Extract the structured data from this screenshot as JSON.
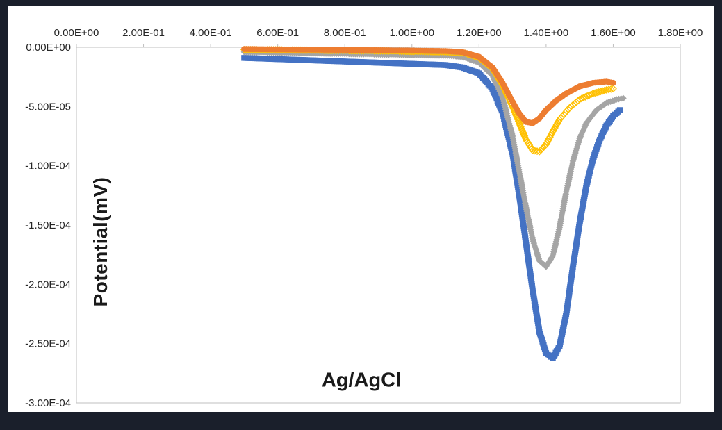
{
  "page": {
    "background_color": "#1a1f2b",
    "card_background_color": "#ffffff"
  },
  "chart_data": {
    "type": "scatter",
    "title": "",
    "xlabel": "Ag/AgCl",
    "ylabel": "Potential(mV)",
    "xlim": [
      0.0,
      1.8
    ],
    "ylim": [
      -0.0003,
      0.0
    ],
    "grid": false,
    "legend": "none",
    "axis_color": "#BFBFBF",
    "tick_text_color": "#262626",
    "x_ticks": [
      "0.00E+00",
      "2.00E-01",
      "4.00E-01",
      "6.00E-01",
      "8.00E-01",
      "1.00E+00",
      "1.20E+00",
      "1.40E+00",
      "1.60E+00",
      "1.80E+00"
    ],
    "x_tick_values": [
      0.0,
      0.2,
      0.4,
      0.6,
      0.8,
      1.0,
      1.2,
      1.4,
      1.6,
      1.8
    ],
    "y_ticks": [
      "0.00E+00",
      "-5.00E-05",
      "-1.00E-04",
      "-1.50E-04",
      "-2.00E-04",
      "-2.50E-04",
      "-3.00E-04"
    ],
    "y_tick_values": [
      0.0,
      -5e-05,
      -0.0001,
      -0.00015,
      -0.0002,
      -0.00025,
      -0.0003
    ],
    "series": [
      {
        "name": "blue-squares",
        "marker": "square",
        "color": "#4472C4",
        "points": [
          [
            0.5,
            -9e-06
          ],
          [
            0.55,
            -9.5e-06
          ],
          [
            0.6,
            -1e-05
          ],
          [
            0.7,
            -1.1e-05
          ],
          [
            0.8,
            -1.2e-05
          ],
          [
            0.9,
            -1.3e-05
          ],
          [
            1.0,
            -1.4e-05
          ],
          [
            1.1,
            -1.5e-05
          ],
          [
            1.15,
            -1.7e-05
          ],
          [
            1.2,
            -2.2e-05
          ],
          [
            1.24,
            -3.5e-05
          ],
          [
            1.27,
            -5.5e-05
          ],
          [
            1.3,
            -9e-05
          ],
          [
            1.32,
            -0.000125
          ],
          [
            1.34,
            -0.000165
          ],
          [
            1.36,
            -0.000205
          ],
          [
            1.38,
            -0.00024
          ],
          [
            1.4,
            -0.000258
          ],
          [
            1.42,
            -0.000262
          ],
          [
            1.44,
            -0.000252
          ],
          [
            1.46,
            -0.000225
          ],
          [
            1.48,
            -0.000185
          ],
          [
            1.5,
            -0.000148
          ],
          [
            1.52,
            -0.000117
          ],
          [
            1.54,
            -9.4e-05
          ],
          [
            1.56,
            -7.8e-05
          ],
          [
            1.58,
            -6.6e-05
          ],
          [
            1.6,
            -5.8e-05
          ],
          [
            1.62,
            -5.3e-05
          ]
        ]
      },
      {
        "name": "gray-diamonds",
        "marker": "diamond",
        "color": "#A5A5A5",
        "points": [
          [
            0.5,
            -4e-06
          ],
          [
            0.6,
            -4.5e-06
          ],
          [
            0.7,
            -5e-06
          ],
          [
            0.8,
            -5.5e-06
          ],
          [
            0.9,
            -6e-06
          ],
          [
            1.0,
            -6.5e-06
          ],
          [
            1.1,
            -7e-06
          ],
          [
            1.15,
            -8e-06
          ],
          [
            1.2,
            -1.3e-05
          ],
          [
            1.24,
            -2.4e-05
          ],
          [
            1.27,
            -4.2e-05
          ],
          [
            1.3,
            -7.5e-05
          ],
          [
            1.32,
            -0.000105
          ],
          [
            1.34,
            -0.000135
          ],
          [
            1.36,
            -0.000162
          ],
          [
            1.38,
            -0.00018
          ],
          [
            1.4,
            -0.000185
          ],
          [
            1.42,
            -0.000176
          ],
          [
            1.44,
            -0.000152
          ],
          [
            1.46,
            -0.000122
          ],
          [
            1.48,
            -9.6e-05
          ],
          [
            1.5,
            -7.7e-05
          ],
          [
            1.52,
            -6.4e-05
          ],
          [
            1.55,
            -5.3e-05
          ],
          [
            1.58,
            -4.7e-05
          ],
          [
            1.61,
            -4.4e-05
          ],
          [
            1.63,
            -4.3e-05
          ]
        ]
      },
      {
        "name": "yellow-open-diamonds",
        "marker": "open-diamond",
        "color": "#FFC000",
        "points": [
          [
            0.5,
            -2e-06
          ],
          [
            0.6,
            -2.2e-06
          ],
          [
            0.7,
            -2.5e-06
          ],
          [
            0.8,
            -2.8e-06
          ],
          [
            0.9,
            -3e-06
          ],
          [
            1.0,
            -3.5e-06
          ],
          [
            1.1,
            -4e-06
          ],
          [
            1.16,
            -5e-06
          ],
          [
            1.2,
            -9e-06
          ],
          [
            1.24,
            -1.8e-05
          ],
          [
            1.27,
            -3.2e-05
          ],
          [
            1.3,
            -5e-05
          ],
          [
            1.32,
            -6.4e-05
          ],
          [
            1.34,
            -7.8e-05
          ],
          [
            1.36,
            -8.7e-05
          ],
          [
            1.38,
            -8.8e-05
          ],
          [
            1.4,
            -8.2e-05
          ],
          [
            1.42,
            -7.1e-05
          ],
          [
            1.44,
            -6.1e-05
          ],
          [
            1.47,
            -5.1e-05
          ],
          [
            1.5,
            -4.4e-05
          ],
          [
            1.54,
            -3.9e-05
          ],
          [
            1.58,
            -3.6e-05
          ],
          [
            1.6,
            -3.5e-05
          ]
        ]
      },
      {
        "name": "orange-circles",
        "marker": "circle",
        "color": "#ED7D31",
        "points": [
          [
            0.5,
            -1.5e-06
          ],
          [
            0.6,
            -1.8e-06
          ],
          [
            0.7,
            -2e-06
          ],
          [
            0.8,
            -2.2e-06
          ],
          [
            0.9,
            -2.5e-06
          ],
          [
            1.0,
            -2.8e-06
          ],
          [
            1.1,
            -3.2e-06
          ],
          [
            1.15,
            -4e-06
          ],
          [
            1.2,
            -8e-06
          ],
          [
            1.24,
            -1.7e-05
          ],
          [
            1.27,
            -3e-05
          ],
          [
            1.3,
            -4.6e-05
          ],
          [
            1.32,
            -5.6e-05
          ],
          [
            1.34,
            -6.3e-05
          ],
          [
            1.36,
            -6.4e-05
          ],
          [
            1.38,
            -6e-05
          ],
          [
            1.4,
            -5.3e-05
          ],
          [
            1.43,
            -4.5e-05
          ],
          [
            1.46,
            -3.9e-05
          ],
          [
            1.5,
            -3.3e-05
          ],
          [
            1.54,
            -3e-05
          ],
          [
            1.58,
            -2.9e-05
          ],
          [
            1.6,
            -3e-05
          ]
        ]
      }
    ]
  }
}
